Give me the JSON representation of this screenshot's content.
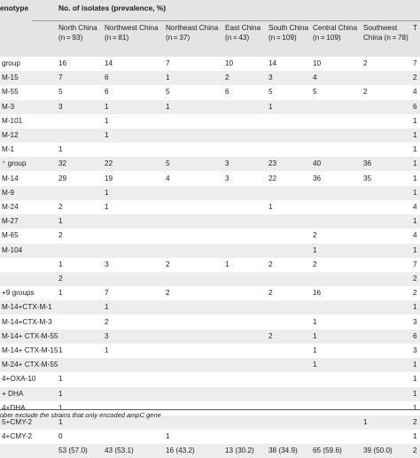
{
  "header": {
    "col0": "enotype",
    "group_title": "No. of isolates (prevalence, %)",
    "columns": [
      {
        "name": "North China",
        "n": "(n = 93)"
      },
      {
        "name": "Northwest China",
        "n": "(n = 81)"
      },
      {
        "name": "Northeast China",
        "n": "(n = 37)"
      },
      {
        "name": "East China",
        "n": "(n = 43)"
      },
      {
        "name": "South China",
        "n": "(n = 109)"
      },
      {
        "name": "Central China",
        "n": "(n = 109)"
      },
      {
        "name": "Southwest",
        "n": "China (n = 78)"
      },
      {
        "name": "T",
        "n": ""
      }
    ]
  },
  "rows": [
    {
      "label": "group",
      "v": [
        "16",
        "14",
        "7",
        "10",
        "14",
        "10",
        "2",
        "7"
      ]
    },
    {
      "label": "M-15",
      "v": [
        "7",
        "6",
        "1",
        "2",
        "3",
        "4",
        "",
        "2"
      ]
    },
    {
      "label": "M-55",
      "v": [
        "5",
        "6",
        "5",
        "6",
        "5",
        "5",
        "2",
        "4"
      ]
    },
    {
      "label": "M-3",
      "v": [
        "3",
        "1",
        "1",
        "",
        "1",
        "",
        "",
        "6"
      ]
    },
    {
      "label": "M-101",
      "v": [
        "",
        "1",
        "",
        "",
        "",
        "",
        "",
        "1"
      ]
    },
    {
      "label": "M-12",
      "v": [
        "",
        "1",
        "",
        "",
        "",
        "",
        "",
        "1"
      ]
    },
    {
      "label": "M-1",
      "v": [
        "1",
        "",
        "",
        "",
        "",
        "",
        "",
        "1"
      ]
    },
    {
      "label": "⁺ group",
      "v": [
        "32",
        "22",
        "5",
        "3",
        "23",
        "40",
        "36",
        "1"
      ]
    },
    {
      "label": "M-14",
      "v": [
        "29",
        "19",
        "4",
        "3",
        "22",
        "36",
        "35",
        "1"
      ]
    },
    {
      "label": "M-9",
      "v": [
        "",
        "1",
        "",
        "",
        "",
        "",
        "",
        "1"
      ]
    },
    {
      "label": "M-24",
      "v": [
        "2",
        "1",
        "",
        "",
        "1",
        "",
        "",
        "4"
      ]
    },
    {
      "label": "M-27",
      "v": [
        "1",
        "",
        "",
        "",
        "",
        "",
        "",
        "1"
      ]
    },
    {
      "label": "M-65",
      "v": [
        "2",
        "",
        "",
        "",
        "",
        "2",
        "",
        "4"
      ]
    },
    {
      "label": "M-104",
      "v": [
        "",
        "",
        "",
        "",
        "",
        "1",
        "",
        "1"
      ]
    },
    {
      "label": "",
      "v": [
        "1",
        "3",
        "2",
        "1",
        "2",
        "2",
        "",
        "7"
      ]
    },
    {
      "label": "",
      "v": [
        "2",
        "",
        "",
        "",
        "",
        "",
        "",
        "2"
      ]
    },
    {
      "label": "+9 groups",
      "v": [
        "1",
        "7",
        "2",
        "",
        "2",
        "16",
        "",
        "2"
      ]
    },
    {
      "label": "M-14+CTX-M-1",
      "v": [
        "",
        "1",
        "",
        "",
        "",
        "",
        "",
        "1"
      ]
    },
    {
      "label": "M-14+CTX-M-3",
      "v": [
        "",
        "2",
        "",
        "",
        "",
        "1",
        "",
        "3"
      ]
    },
    {
      "label": "M-14+ CTX-M-55",
      "v": [
        "",
        "3",
        "",
        "",
        "2",
        "1",
        "",
        "6"
      ]
    },
    {
      "label": "M-14+ CTX-M-15",
      "v": [
        "1",
        "1",
        "",
        "",
        "",
        "1",
        "",
        "3"
      ]
    },
    {
      "label": "M-24+ CTX-M-55",
      "v": [
        "",
        "",
        "",
        "",
        "",
        "1",
        "",
        "1"
      ]
    },
    {
      "label": "4+OXA-10",
      "v": [
        "1",
        "",
        "",
        "",
        "",
        "",
        "",
        "1"
      ]
    },
    {
      "label": "+ DHA",
      "v": [
        "1",
        "",
        "",
        "",
        "",
        "",
        "",
        "1"
      ]
    },
    {
      "label": "4+DHA",
      "v": [
        "1",
        "",
        "",
        "",
        "",
        "",
        "",
        "1"
      ]
    },
    {
      "label": "5+CMY-2",
      "v": [
        "1",
        "",
        "",
        "",
        "",
        "",
        "1",
        "2"
      ]
    },
    {
      "label": "4+CMY-2",
      "v": [
        "0",
        "",
        "1",
        "",
        "",
        "",
        "",
        "1"
      ]
    },
    {
      "label": "",
      "v": [
        "53 (57.0)",
        "43 (53.1)",
        "16 (43.2)",
        "13 (30.2)",
        "38 (34.9)",
        "65 (59.6)",
        "39 (50.0)",
        "2"
      ]
    }
  ],
  "footnote": "ober exclude the strains that only encoded ampC gene"
}
